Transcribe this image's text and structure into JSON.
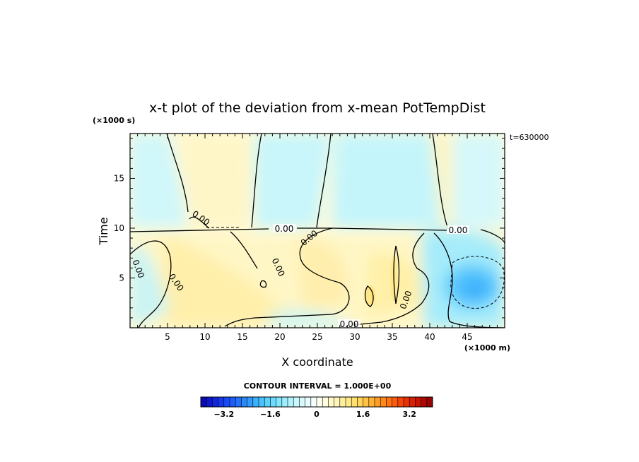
{
  "chart_data": {
    "type": "heatmap",
    "title": "x-t plot of the deviation from x-mean PotTempDist",
    "xlabel": "X coordinate",
    "ylabel": "Time",
    "x_unit": "(×1000 m)",
    "y_unit": "(×1000 s)",
    "time_annotation": "t=630000",
    "xlim": [
      0,
      50
    ],
    "ylim": [
      0,
      19.5
    ],
    "x_ticks": [
      5,
      10,
      15,
      20,
      25,
      30,
      35,
      40,
      45
    ],
    "x_tick_labels": [
      "5",
      "10",
      "15",
      "20",
      "25",
      "30",
      "35",
      "40",
      "45"
    ],
    "y_ticks": [
      5,
      10,
      15
    ],
    "y_tick_labels": [
      "5",
      "10",
      "15"
    ],
    "contour_interval_label": "CONTOUR INTERVAL = 1.000E+00",
    "contour_label": "0.00",
    "colorbar": {
      "min": -4.0,
      "max": 4.0,
      "step": 0.2,
      "tick_values": [
        -3.2,
        -1.6,
        0,
        1.6,
        3.2
      ],
      "tick_labels": [
        "−3.2",
        "−1.6",
        "0",
        "1.6",
        "3.2"
      ],
      "colors": [
        "#0a0ab4",
        "#0c18c8",
        "#1028dc",
        "#1438ec",
        "#1a4af5",
        "#1e5ef8",
        "#2472fa",
        "#2a88fb",
        "#329cfc",
        "#3cb0fd",
        "#4ac2fd",
        "#5ad0fd",
        "#6edcfd",
        "#84e6fd",
        "#9cedfd",
        "#b4f3fd",
        "#c8f7fd",
        "#d8fafd",
        "#e6fcfd",
        "#f2fefd",
        "#fffff0",
        "#fffce0",
        "#fff9cc",
        "#fff5b8",
        "#fff0a0",
        "#ffe988",
        "#ffe070",
        "#ffd45a",
        "#ffc446",
        "#ffb234",
        "#ff9e26",
        "#ff8a1a",
        "#ff7212",
        "#fc5a0c",
        "#f44408",
        "#e83006",
        "#d82004",
        "#c41404",
        "#ae0a04",
        "#960404"
      ]
    },
    "field_regions": [
      {
        "value": 0.3,
        "description": "positive deviation, t < 10 across most x"
      },
      {
        "value": -0.3,
        "description": "negative deviation, t > 10 in bands near x=0-5, 17-26, 27-38, 41-50"
      },
      {
        "value": -2.0,
        "description": "minimum near x=47, t=4"
      },
      {
        "value": 0.9,
        "description": "local maximum near x=35, t=4-7"
      }
    ]
  }
}
